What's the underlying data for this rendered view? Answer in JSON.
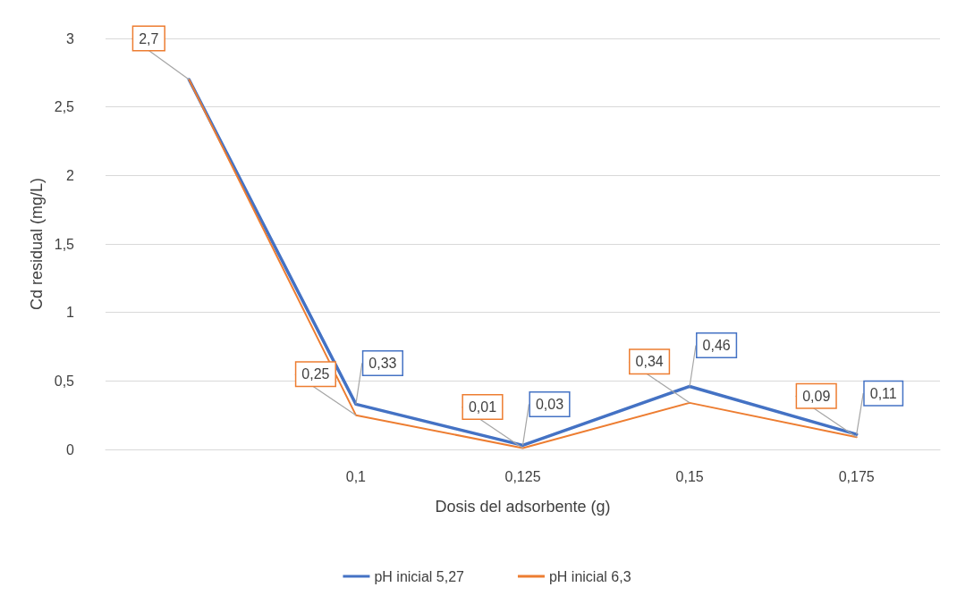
{
  "chart_data": {
    "type": "line",
    "xlabel": "Dosis del adsorbente (g)",
    "ylabel": "Cd residual (mg/L)",
    "categories": [
      null,
      "0,1",
      "0,125",
      "0,15",
      "0,175"
    ],
    "series": [
      {
        "name": "pH inicial 5,27",
        "color": "#4472c4",
        "values": [
          2.7,
          0.33,
          0.03,
          0.46,
          0.11
        ],
        "value_labels": [
          null,
          "0,33",
          "0,03",
          "0,46",
          "0,11"
        ]
      },
      {
        "name": "pH inicial 6,3",
        "color": "#ed7d31",
        "values": [
          2.7,
          0.25,
          0.01,
          0.34,
          0.09
        ],
        "value_labels": [
          "2,7",
          "0,25",
          "0,01",
          "0,34",
          "0,09"
        ]
      }
    ],
    "ylim": [
      0,
      3
    ],
    "yticks": [
      0,
      {
        "value": 0.5,
        "label": "0,5"
      },
      1,
      {
        "value": 1.5,
        "label": "1,5"
      },
      2,
      {
        "value": 2.5,
        "label": "2,5"
      },
      3
    ],
    "grid": "y",
    "legend": "bottom",
    "marker": "none",
    "line_style": "solid"
  }
}
